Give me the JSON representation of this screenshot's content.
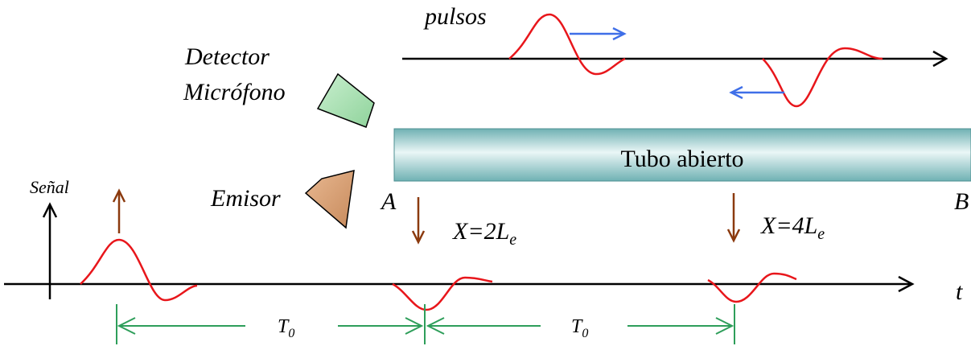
{
  "labels": {
    "pulses": "pulsos",
    "detector": [
      "Detector",
      "Micrófono"
    ],
    "emitter": "Emisor",
    "tube": "Tubo abierto",
    "end_a": "A",
    "end_b": "B",
    "signal": "Señal",
    "time": "t"
  },
  "reflections": [
    {
      "label": "X=2L",
      "subscript": "e"
    },
    {
      "label": "X=4L",
      "subscript": "e"
    }
  ],
  "periods": [
    {
      "label": "T",
      "subscript": "0"
    },
    {
      "label": "T",
      "subscript": "0"
    }
  ]
}
